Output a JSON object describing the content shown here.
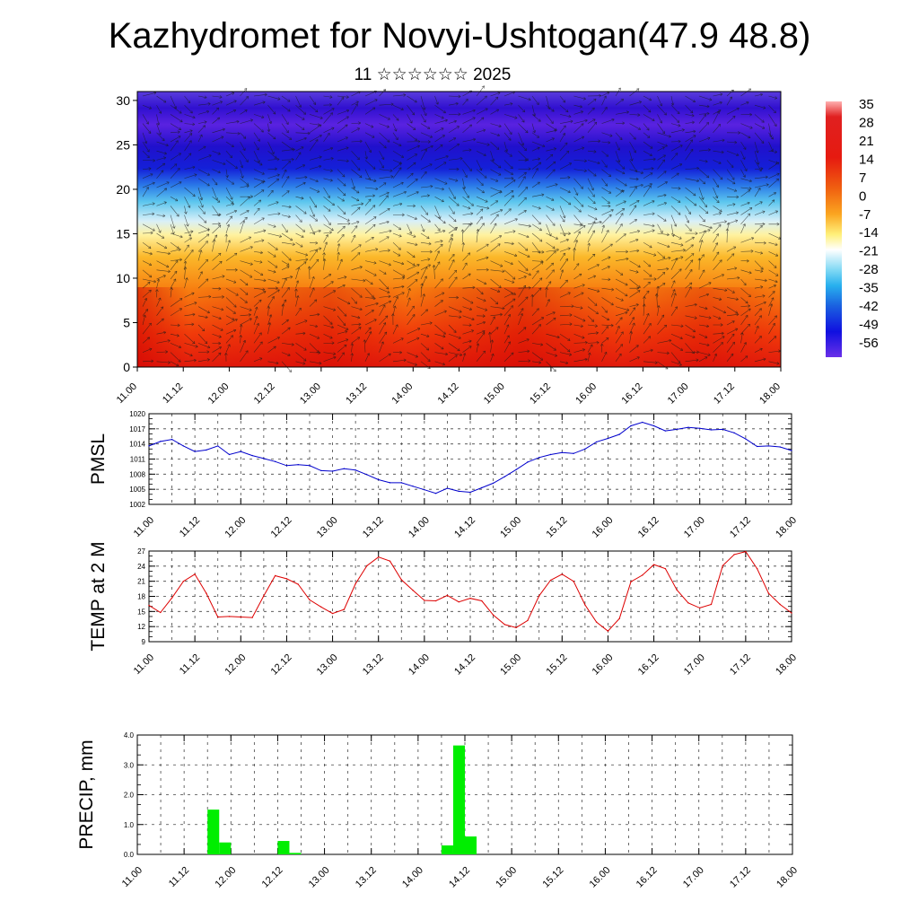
{
  "title": "Kazhydromet for Novyi-Ushtogan(47.9 48.8)",
  "subtitle": "11 ☆☆☆☆☆☆ 2025",
  "chart_data": [
    {
      "type": "heatmap",
      "x_tick_labels": [
        "11.00",
        "11.12",
        "12.00",
        "12.12",
        "13.00",
        "13.12",
        "14.00",
        "14.12",
        "15.00",
        "15.12",
        "16.00",
        "16.12",
        "17.00",
        "17.12",
        "18.00"
      ],
      "yticks": [
        0,
        5,
        10,
        15,
        20,
        25,
        30
      ],
      "ylim": [
        0,
        31
      ],
      "colorbar_labels": [
        "35",
        "28",
        "21",
        "14",
        "7",
        "0",
        "-7",
        "-14",
        "-21",
        "-28",
        "-35",
        "-42",
        "-49",
        "-56"
      ],
      "overlay": "wind vectors"
    },
    {
      "type": "line",
      "ylabel": "PMSL",
      "yticks": [
        1002,
        1005,
        1008,
        1011,
        1014,
        1017,
        1020
      ],
      "ylim": [
        1002,
        1020
      ],
      "x_tick_labels": [
        "11.00",
        "11.12",
        "12.00",
        "12.12",
        "13.00",
        "13.12",
        "14.00",
        "14.12",
        "15.00",
        "15.12",
        "16.00",
        "16.12",
        "17.00",
        "17.12",
        "18.00"
      ],
      "x": [
        0,
        1,
        2,
        3,
        4,
        5,
        6,
        7,
        8,
        9,
        10,
        11,
        12,
        13,
        14,
        15,
        16,
        17,
        18,
        19,
        20,
        21,
        22,
        23,
        24,
        25,
        26,
        27,
        28,
        29,
        30,
        31,
        32,
        33,
        34,
        35,
        36,
        37,
        38,
        39,
        40,
        41,
        42,
        43,
        44,
        45,
        46,
        47,
        48,
        49,
        50,
        51,
        52,
        53,
        54,
        55,
        56
      ],
      "values": [
        1013.6,
        1014.5,
        1014.9,
        1013.6,
        1012.5,
        1012.8,
        1013.6,
        1011.9,
        1012.5,
        1011.7,
        1011.1,
        1010.5,
        1009.7,
        1009.9,
        1009.7,
        1008.7,
        1008.6,
        1009.1,
        1008.8,
        1007.9,
        1006.9,
        1006.3,
        1006.3,
        1005.6,
        1004.9,
        1004.2,
        1005.2,
        1004.6,
        1004.4,
        1005.3,
        1006.2,
        1007.5,
        1008.9,
        1010.4,
        1011.3,
        1011.9,
        1012.3,
        1012.1,
        1013.0,
        1014.4,
        1015.1,
        1015.9,
        1017.6,
        1018.3,
        1017.6,
        1016.6,
        1016.9,
        1017.3,
        1017.1,
        1016.8,
        1016.9,
        1016.2,
        1015.0,
        1013.5,
        1013.6,
        1013.4,
        1012.7
      ],
      "color": "#0000cc"
    },
    {
      "type": "line",
      "ylabel": "TEMP at 2 M",
      "yticks": [
        9,
        12,
        15,
        18,
        21,
        24,
        27
      ],
      "ylim": [
        9,
        27
      ],
      "x_tick_labels": [
        "11.00",
        "11.12",
        "12.00",
        "12.12",
        "13.00",
        "13.12",
        "14.00",
        "14.12",
        "15.00",
        "15.12",
        "16.00",
        "16.12",
        "17.00",
        "17.12",
        "18.00"
      ],
      "x": [
        0,
        1,
        2,
        3,
        4,
        5,
        6,
        7,
        8,
        9,
        10,
        11,
        12,
        13,
        14,
        15,
        16,
        17,
        18,
        19,
        20,
        21,
        22,
        23,
        24,
        25,
        26,
        27,
        28,
        29,
        30,
        31,
        32,
        33,
        34,
        35,
        36,
        37,
        38,
        39,
        40,
        41,
        42,
        43,
        44,
        45,
        46,
        47,
        48,
        49,
        50,
        51,
        52,
        53,
        54,
        55,
        56
      ],
      "values": [
        16.2,
        14.8,
        17.7,
        21.0,
        22.4,
        18.6,
        13.9,
        14.0,
        13.9,
        13.8,
        18.1,
        22.1,
        21.5,
        20.4,
        17.3,
        15.9,
        14.6,
        15.4,
        20.5,
        24.1,
        25.8,
        25.0,
        21.3,
        19.2,
        17.2,
        17.1,
        18.2,
        16.9,
        17.6,
        17.1,
        14.3,
        12.4,
        11.8,
        13.2,
        18.1,
        21.2,
        22.4,
        21.0,
        16.3,
        12.9,
        11.1,
        13.6,
        20.9,
        22.2,
        24.3,
        23.5,
        19.3,
        16.7,
        15.7,
        16.4,
        24.1,
        26.3,
        26.9,
        23.5,
        18.6,
        16.4,
        14.7
      ],
      "color": "#dd0000"
    },
    {
      "type": "bar",
      "ylabel": "PRECIP, mm",
      "yticks": [
        "0.0",
        "1.0",
        "2.0",
        "3.0",
        "4.0"
      ],
      "ylim": [
        0,
        4
      ],
      "x_tick_labels": [
        "11.00",
        "11.12",
        "12.00",
        "12.12",
        "13.00",
        "13.12",
        "14.00",
        "14.12",
        "15.00",
        "15.12",
        "16.00",
        "16.12",
        "17.00",
        "17.12",
        "18.00"
      ],
      "x": [
        6,
        7,
        12,
        13,
        26,
        27,
        28
      ],
      "values": [
        1.5,
        0.4,
        0.45,
        0.05,
        0.3,
        3.65,
        0.6
      ],
      "color": "#00ee00"
    }
  ]
}
